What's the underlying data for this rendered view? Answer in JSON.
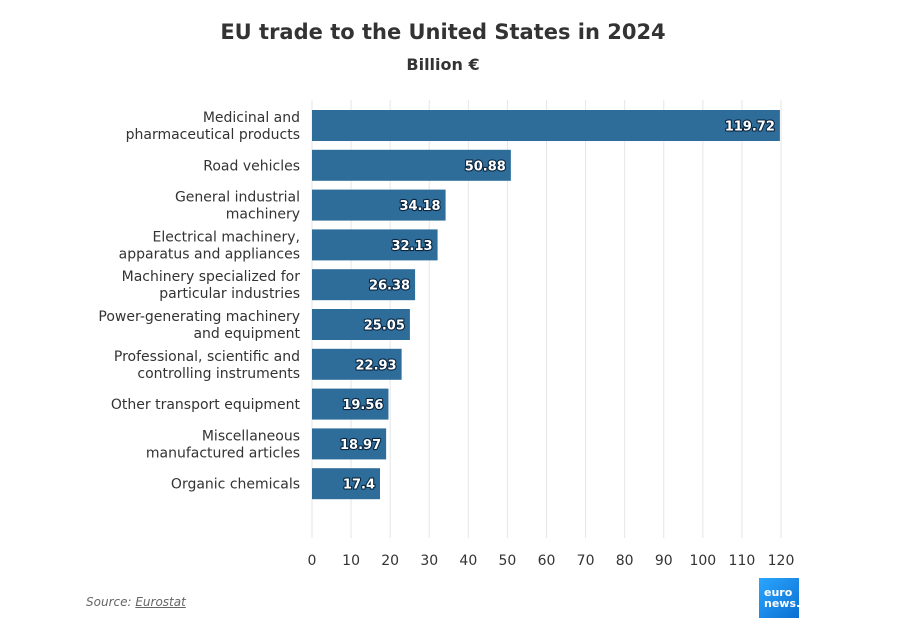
{
  "chart_data": {
    "type": "bar",
    "orientation": "horizontal",
    "title": "EU trade to the United States in 2024",
    "subtitle": "Billion €",
    "categories": [
      [
        "Medicinal and",
        "pharmaceutical products"
      ],
      [
        "Road vehicles"
      ],
      [
        "General industrial",
        "machinery"
      ],
      [
        "Electrical machinery,",
        "apparatus and appliances"
      ],
      [
        "Machinery specialized for",
        "particular industries"
      ],
      [
        "Power-generating machinery",
        "and equipment"
      ],
      [
        "Professional, scientific and",
        "controlling instruments"
      ],
      [
        "Other transport equipment"
      ],
      [
        "Miscellaneous",
        "manufactured articles"
      ],
      [
        "Organic chemicals"
      ]
    ],
    "values": [
      119.72,
      50.88,
      34.18,
      32.13,
      26.38,
      25.05,
      22.93,
      19.56,
      18.97,
      17.4
    ],
    "value_labels": [
      "119.72",
      "50.88",
      "34.18",
      "32.13",
      "26.38",
      "25.05",
      "22.93",
      "19.56",
      "18.97",
      "17.4"
    ],
    "xlim": [
      0,
      120
    ],
    "x_ticks": [
      0,
      10,
      20,
      30,
      40,
      50,
      60,
      70,
      80,
      90,
      100,
      110,
      120
    ],
    "grid": "vertical",
    "bar_color": "#2e6d99"
  },
  "source": {
    "prefix": "Source: ",
    "name": "Eurostat"
  },
  "logo": {
    "line1": "euro",
    "line2": "news."
  }
}
